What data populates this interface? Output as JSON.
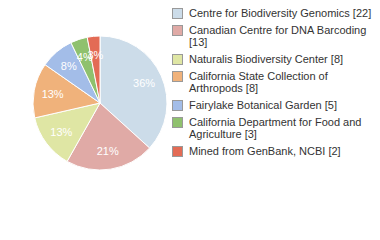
{
  "chart_data": {
    "type": "pie",
    "categories": [
      "Centre for Biodiversity Genomics [22]",
      "Canadian Centre for DNA Barcoding [13]",
      "Naturalis Biodiversity Center [8]",
      "California State Collection of Arthropods [8]",
      "Fairylake Botanical Garden [5]",
      "California Department for Food and Agriculture [3]",
      "Mined from GenBank, NCBI [2]"
    ],
    "values": [
      36,
      21,
      13,
      13,
      8,
      4,
      3
    ],
    "value_labels": [
      "36%",
      "21%",
      "13%",
      "13%",
      "8%",
      "4%",
      "3%"
    ],
    "colors": [
      "#ccdce9",
      "#e0aaa6",
      "#dfe6a4",
      "#f0b27b",
      "#a3bde8",
      "#8fc16e",
      "#e36b55"
    ],
    "data_labels": true,
    "legend": "right"
  }
}
